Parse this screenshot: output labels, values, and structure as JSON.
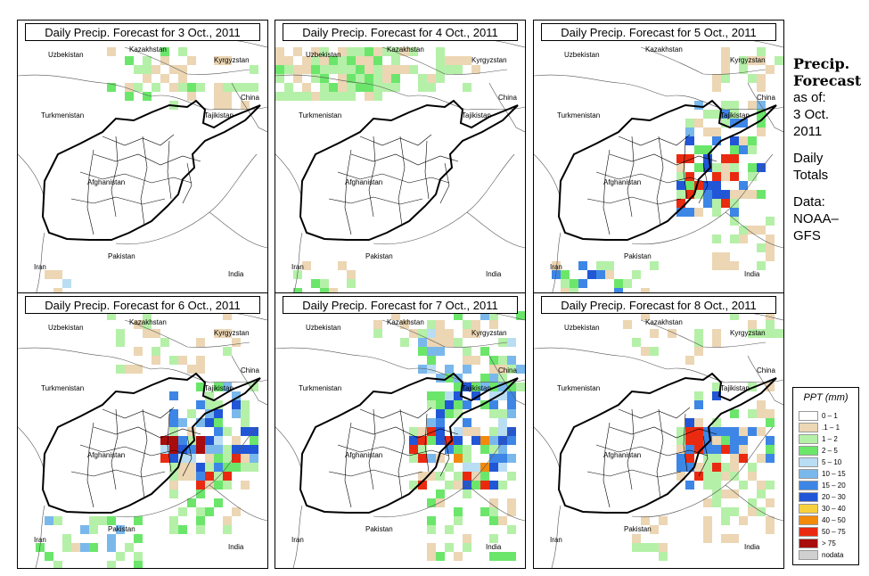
{
  "panels": [
    {
      "title": "Daily Precip. Forecast for  3 Oct., 2011"
    },
    {
      "title": "Daily Precip. Forecast for  4 Oct., 2011"
    },
    {
      "title": "Daily Precip. Forecast for  5 Oct., 2011"
    },
    {
      "title": "Daily Precip. Forecast for  6 Oct., 2011"
    },
    {
      "title": "Daily Precip. Forecast for  7 Oct., 2011"
    },
    {
      "title": "Daily Precip. Forecast for  8 Oct., 2011"
    }
  ],
  "countries": {
    "uzbekistan": "Uzbekistan",
    "kazakhstan": "Kazakhstan",
    "kyrgyzstan": "Kyrgyzstan",
    "china": "China",
    "turkmenistan": "Turkmenistan",
    "tajikistan": "Tajikistan",
    "afghanistan": "Afghanistan",
    "pakistan": "Pakistan",
    "iran": "Iran",
    "india": "India"
  },
  "side": {
    "title_line1": "Precip.",
    "title_line2": "Forecast",
    "asof": "as of:",
    "date_line1": "3 Oct.",
    "date_line2": "2011",
    "daily": "Daily",
    "totals": "Totals",
    "data_label": "Data:",
    "source_line1": "NOAA–",
    "source_line2": "GFS"
  },
  "legend": {
    "title": "PPT (mm)",
    "items": [
      {
        "label": "0 – 1",
        "color": "#ffffff"
      },
      {
        "label": ".1 – 1",
        "color": "#ecd6b4"
      },
      {
        "label": "1 – 2",
        "color": "#b5f0a8"
      },
      {
        "label": "2 – 5",
        "color": "#6be66b"
      },
      {
        "label": "5 – 10",
        "color": "#b9ddf3"
      },
      {
        "label": "10 – 15",
        "color": "#7ab8ec"
      },
      {
        "label": "15 – 20",
        "color": "#3d86e6"
      },
      {
        "label": "20 – 30",
        "color": "#2156d6"
      },
      {
        "label": "30 – 40",
        "color": "#f7d13d"
      },
      {
        "label": "40 – 50",
        "color": "#f28a0c"
      },
      {
        "label": "50 – 75",
        "color": "#ea2a10"
      },
      {
        "label": "> 75",
        "color": "#a80c0c"
      },
      {
        "label": "nodata",
        "color": "#d0d0d0"
      }
    ]
  }
}
